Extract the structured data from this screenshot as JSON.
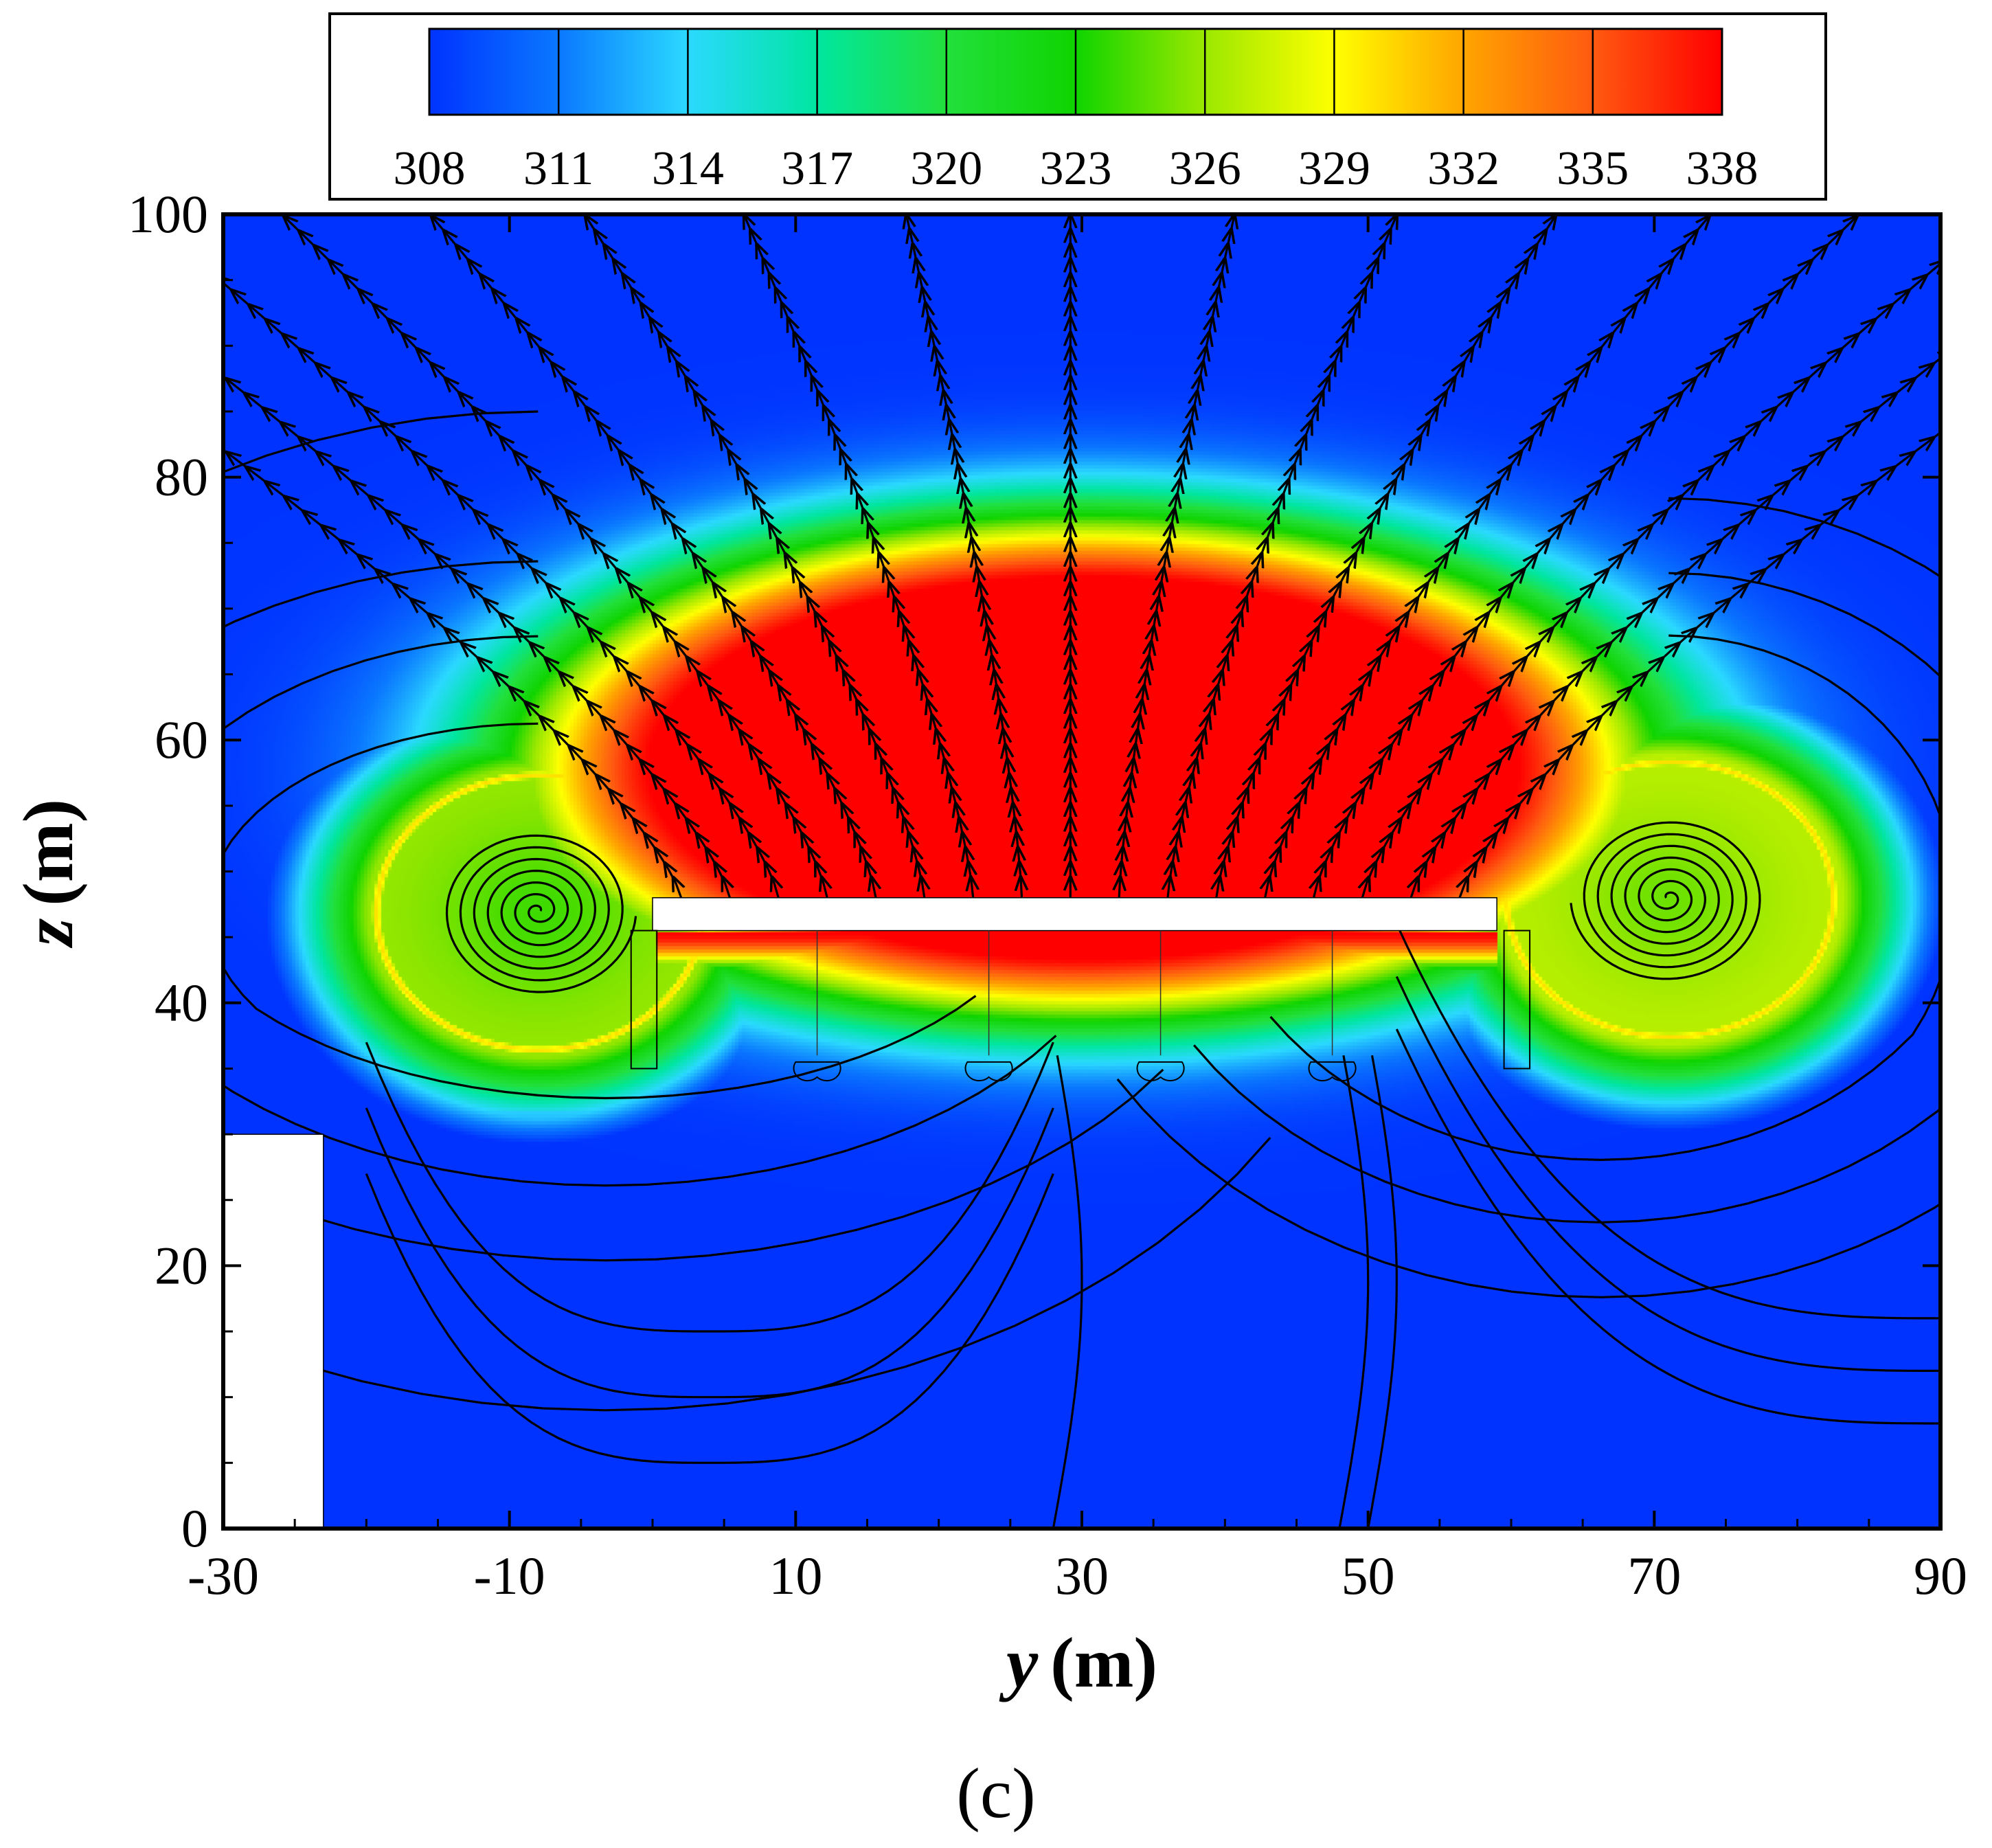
{
  "chart_data": {
    "type": "heatmap",
    "xlabel_var": "y",
    "xlabel_unit": "(m)",
    "ylabel_var": "z",
    "ylabel_unit": "(m)",
    "xlim": [
      -30,
      90
    ],
    "ylim": [
      0,
      100
    ],
    "x_ticks": [
      "-30",
      "-10",
      "10",
      "30",
      "50",
      "70",
      "90"
    ],
    "y_ticks": [
      "0",
      "20",
      "40",
      "60",
      "80",
      "100"
    ],
    "colorbar": {
      "levels": [
        "308",
        "311",
        "314",
        "317",
        "320",
        "323",
        "326",
        "329",
        "332",
        "335",
        "338"
      ],
      "colors": [
        "#0033ff",
        "#0a78ff",
        "#2bd9ff",
        "#00e6a0",
        "#22e03c",
        "#0fd400",
        "#9be800",
        "#ffff00",
        "#ffa500",
        "#ff5a10",
        "#ff0000"
      ]
    },
    "field": {
      "min": 308,
      "max": 338,
      "ambient": 308,
      "hot_plume_center": [
        30,
        58
      ],
      "vortices": [
        {
          "name": "left-vortex",
          "center": [
            -8,
            47
          ],
          "core_value": 326
        },
        {
          "name": "right-vortex",
          "center": [
            71,
            48
          ],
          "core_value": 327
        }
      ]
    },
    "streamlines": true,
    "obstacles": [
      {
        "name": "horizontal-beam",
        "y": [
          0,
          59
        ],
        "z": [
          45.5,
          48
        ]
      },
      {
        "name": "left-wall",
        "y": [
          -30,
          -23
        ],
        "z": [
          0,
          30
        ]
      }
    ],
    "panel_label": "(c)"
  }
}
